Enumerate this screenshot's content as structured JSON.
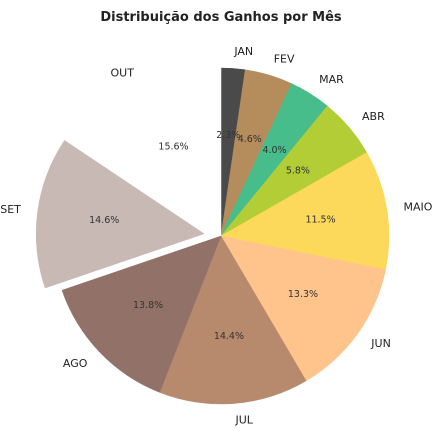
{
  "chart_data": {
    "type": "pie",
    "title": "Distribuição dos Ganhos por Mês",
    "start_angle_deg": 90,
    "direction": "clockwise",
    "categories": [
      "JAN",
      "FEV",
      "MAR",
      "ABR",
      "MAIO",
      "JUN",
      "JUL",
      "AGO",
      "SET",
      "OUT"
    ],
    "values": [
      2.3,
      4.6,
      4.0,
      5.8,
      11.5,
      13.3,
      14.4,
      13.8,
      14.6,
      15.6
    ],
    "labels": [
      "2.3%",
      "4.6%",
      "4.0%",
      "5.8%",
      "11.5%",
      "13.3%",
      "14.4%",
      "13.8%",
      "14.6%",
      "15.6%"
    ],
    "colors": [
      "#4a4a4a",
      "#b58d5c",
      "#47bd8c",
      "#b2cd35",
      "#fcd85b",
      "#fec48b",
      "#b78a6e",
      "#927268",
      "#c8b9b4",
      "#ffffff"
    ],
    "exploded": [
      "SET"
    ]
  }
}
